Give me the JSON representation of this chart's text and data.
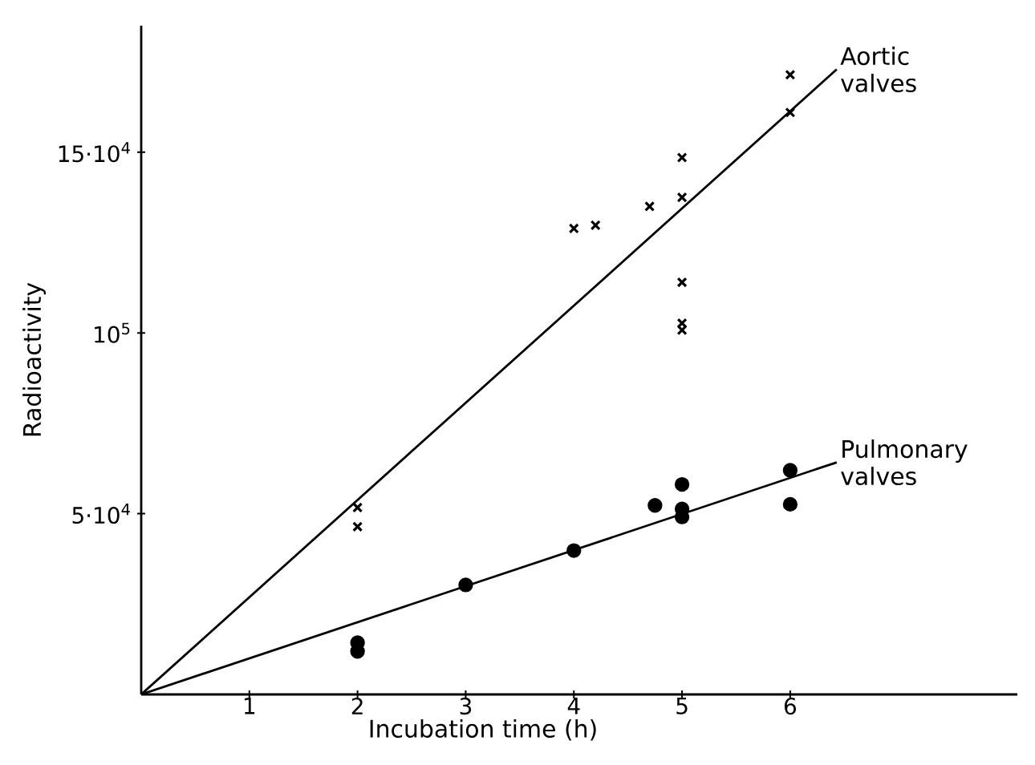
{
  "chart_data": {
    "type": "scatter",
    "xlabel": "Incubation time (h)",
    "ylabel": "Radioactivity",
    "xlim": [
      0,
      8.1
    ],
    "ylim": [
      0,
      185000
    ],
    "xticks": [
      1,
      2,
      3,
      4,
      5,
      6
    ],
    "yticks": [
      {
        "value": 50000,
        "label": "5·10$^{4}$"
      },
      {
        "value": 100000,
        "label": "10$^{5}$"
      },
      {
        "value": 150000,
        "label": "15·10$^{4}$"
      }
    ],
    "grid": false,
    "legend": false,
    "series": [
      {
        "marker": "cross",
        "color": "#000000",
        "x": [
          2,
          2,
          4,
          4.2,
          4.7,
          5,
          5,
          5,
          5,
          5,
          6,
          6
        ],
        "values": [
          51700,
          46400,
          128900,
          129800,
          135000,
          148500,
          137500,
          114000,
          102700,
          100800,
          171400,
          161000
        ]
      },
      {
        "marker": "circle",
        "color": "#000000",
        "x": [
          2,
          2,
          3,
          4,
          4.75,
          5,
          5,
          5,
          6,
          6
        ],
        "values": [
          14300,
          11900,
          30300,
          39800,
          52300,
          58100,
          51300,
          49100,
          62000,
          52600
        ]
      },
      {
        "type": "line",
        "name": "Aortic valves",
        "marker": "none",
        "color": "#000000",
        "x": [
          0,
          6.43
        ],
        "values": [
          0,
          172900
        ]
      },
      {
        "type": "line",
        "name": "Pulmonary valves",
        "marker": "none",
        "color": "#000000",
        "x": [
          0,
          6.43
        ],
        "values": [
          0,
          64200
        ]
      }
    ]
  }
}
